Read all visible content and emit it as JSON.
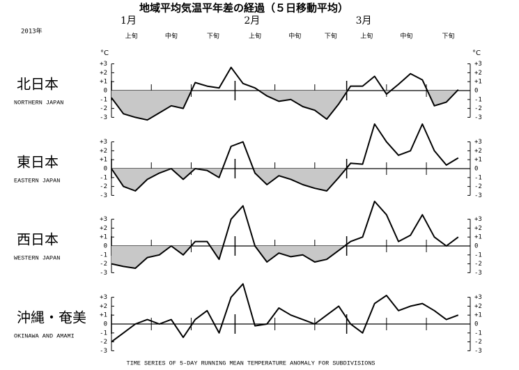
{
  "title": "地域平均気温平年差の経過（５日移動平均）",
  "year": "2013年",
  "unit": "°C",
  "footer": "TIME SERIES OF 5-DAY RUNNING MEAN TEMPERATURE ANOMALY FOR SUBDIVISIONS",
  "xlim": [
    1,
    91
  ],
  "xticks": [
    {
      "value": 1,
      "label": "1月"
    },
    {
      "value": 32,
      "label": "2月"
    },
    {
      "value": 60,
      "label": "3月"
    }
  ],
  "dekads": [
    "上旬",
    "中旬",
    "下旬"
  ],
  "chart_data": [
    {
      "type": "line",
      "title": "北日本",
      "subtitle": "NORTHERN JAPAN",
      "fill_negative": true,
      "x": [
        1,
        4,
        7,
        10,
        13,
        16,
        19,
        22,
        25,
        28,
        31,
        34,
        37,
        40,
        43,
        46,
        49,
        52,
        55,
        58,
        61,
        64,
        67,
        70,
        73,
        76,
        79,
        82,
        85,
        88
      ],
      "ylim": [
        -3,
        3
      ],
      "yticks": [
        {
          "value": 3,
          "label": "+3"
        },
        {
          "value": 2,
          "label": "+2"
        },
        {
          "value": 1,
          "label": "+1"
        },
        0,
        -1,
        -2,
        -3
      ],
      "series": [
        {
          "color": "#000000",
          "values": [
            -0.8,
            -2.6,
            -3.0,
            -3.3,
            -2.5,
            -1.7,
            -2.0,
            0.9,
            0.5,
            0.3,
            2.6,
            0.8,
            0.3,
            -0.6,
            -1.2,
            -1.0,
            -1.8,
            -2.2,
            -3.2,
            -1.5,
            0.5,
            0.5,
            1.6,
            -0.4,
            0.7,
            1.9,
            1.2,
            -1.7,
            -1.3,
            0.1
          ]
        }
      ]
    },
    {
      "type": "line",
      "title": "東日本",
      "subtitle": "EASTERN JAPAN",
      "fill_negative": true,
      "x": [
        1,
        4,
        7,
        10,
        13,
        16,
        19,
        22,
        25,
        28,
        31,
        34,
        37,
        40,
        43,
        46,
        49,
        52,
        55,
        58,
        61,
        64,
        67,
        70,
        73,
        76,
        79,
        82,
        85,
        88
      ],
      "ylim": [
        -3,
        3
      ],
      "yticks": [
        {
          "value": 3,
          "label": "+3"
        },
        {
          "value": 2,
          "label": "+2"
        },
        {
          "value": 1,
          "label": "+1"
        },
        0,
        -1,
        -2,
        -3
      ],
      "series": [
        {
          "color": "#000000",
          "values": [
            0,
            -2.0,
            -2.5,
            -1.2,
            -0.5,
            0.0,
            -1.2,
            0.0,
            -0.2,
            -1.0,
            2.5,
            3.0,
            -0.5,
            -1.8,
            -0.8,
            -1.2,
            -1.8,
            -2.2,
            -2.5,
            -1.0,
            0.6,
            0.5,
            5.0,
            3.0,
            1.5,
            2.0,
            5.0,
            2.0,
            0.4,
            1.2
          ]
        }
      ]
    },
    {
      "type": "line",
      "title": "西日本",
      "subtitle": "WESTERN JAPAN",
      "fill_negative": true,
      "x": [
        1,
        4,
        7,
        10,
        13,
        16,
        19,
        22,
        25,
        28,
        31,
        34,
        37,
        40,
        43,
        46,
        49,
        52,
        55,
        58,
        61,
        64,
        67,
        70,
        73,
        76,
        79,
        82,
        85,
        88
      ],
      "ylim": [
        -3,
        3
      ],
      "yticks": [
        {
          "value": 3,
          "label": "+3"
        },
        {
          "value": 2,
          "label": "+2"
        },
        {
          "value": 1,
          "label": "+1"
        },
        0,
        -1,
        -2,
        -3
      ],
      "series": [
        {
          "color": "#000000",
          "values": [
            -2.0,
            -2.3,
            -2.5,
            -1.3,
            -1.0,
            0.0,
            -1.0,
            0.5,
            0.5,
            -1.5,
            3.0,
            4.5,
            0.0,
            -1.8,
            -0.8,
            -1.2,
            -1.0,
            -1.8,
            -1.5,
            -0.5,
            0.5,
            1.0,
            5.0,
            3.5,
            0.5,
            1.2,
            3.5,
            1.0,
            0.0,
            1.0
          ]
        }
      ]
    },
    {
      "type": "line",
      "title": "沖縄・奄美",
      "subtitle": "OKINAWA AND AMAMI",
      "fill_negative": false,
      "x": [
        1,
        4,
        7,
        10,
        13,
        16,
        19,
        22,
        25,
        28,
        31,
        34,
        37,
        40,
        43,
        46,
        49,
        52,
        55,
        58,
        61,
        64,
        67,
        70,
        73,
        76,
        79,
        82,
        85,
        88
      ],
      "ylim": [
        -3,
        3
      ],
      "yticks": [
        {
          "value": 3,
          "label": "+3"
        },
        {
          "value": 2,
          "label": "+2"
        },
        {
          "value": 1,
          "label": "+1"
        },
        0,
        -1,
        -2,
        -3
      ],
      "series": [
        {
          "color": "#000000",
          "values": [
            -2.0,
            -1.0,
            0.0,
            0.5,
            0.0,
            0.5,
            -1.5,
            0.5,
            1.5,
            -1.0,
            3.0,
            4.5,
            -0.2,
            0.0,
            1.8,
            1.0,
            0.5,
            0.0,
            1.0,
            2.0,
            0.0,
            -1.0,
            2.3,
            3.2,
            1.5,
            2.0,
            2.3,
            1.5,
            0.5,
            1.0
          ]
        }
      ]
    }
  ]
}
